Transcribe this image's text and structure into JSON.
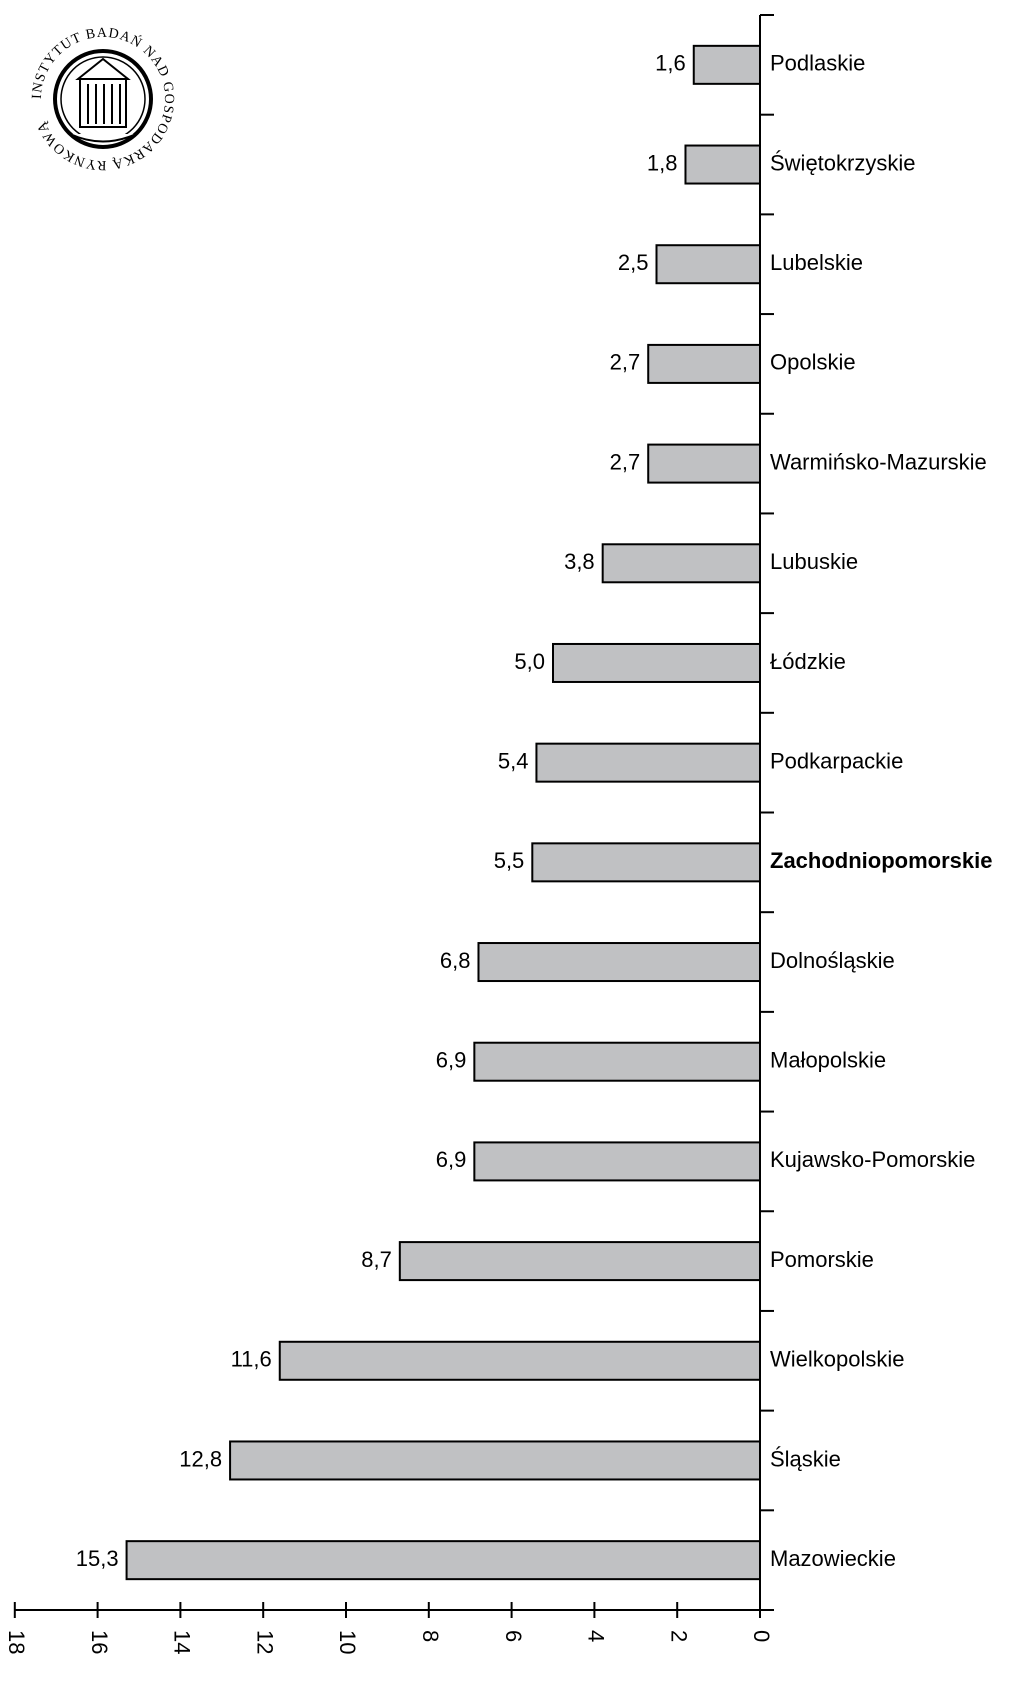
{
  "logo": {
    "ring_text": "INSTYTUT BADAŃ NAD GOSPODARKĄ RYNKOWĄ"
  },
  "chart_data": {
    "type": "bar",
    "orientation": "horizontal",
    "categories": [
      "Podlaskie",
      "Świętokrzyskie",
      "Lubelskie",
      "Opolskie",
      "Warmińsko-Mazurskie",
      "Lubuskie",
      "Łódzkie",
      "Podkarpackie",
      "Zachodniopomorskie",
      "Dolnośląskie",
      "Małopolskie",
      "Kujawsko-Pomorskie",
      "Pomorskie",
      "Wielkopolskie",
      "Śląskie",
      "Mazowieckie"
    ],
    "values": [
      1.6,
      1.8,
      2.5,
      2.7,
      2.7,
      3.8,
      5.0,
      5.4,
      5.5,
      6.8,
      6.9,
      6.9,
      8.7,
      11.6,
      12.8,
      15.3
    ],
    "value_labels": [
      "1,6",
      "1,8",
      "2,5",
      "2,7",
      "2,7",
      "3,8",
      "5,0",
      "5,4",
      "5,5",
      "6,8",
      "6,9",
      "6,9",
      "8,7",
      "11,6",
      "12,8",
      "15,3"
    ],
    "highlighted_category": "Zachodniopomorskie",
    "xlim": [
      0,
      18
    ],
    "x_direction": "reversed",
    "x_ticks": [
      0,
      2,
      4,
      6,
      8,
      10,
      12,
      14,
      16,
      18
    ],
    "bar_color": "#c0c1c3",
    "title": "",
    "xlabel": "",
    "ylabel": "",
    "grid": false
  }
}
